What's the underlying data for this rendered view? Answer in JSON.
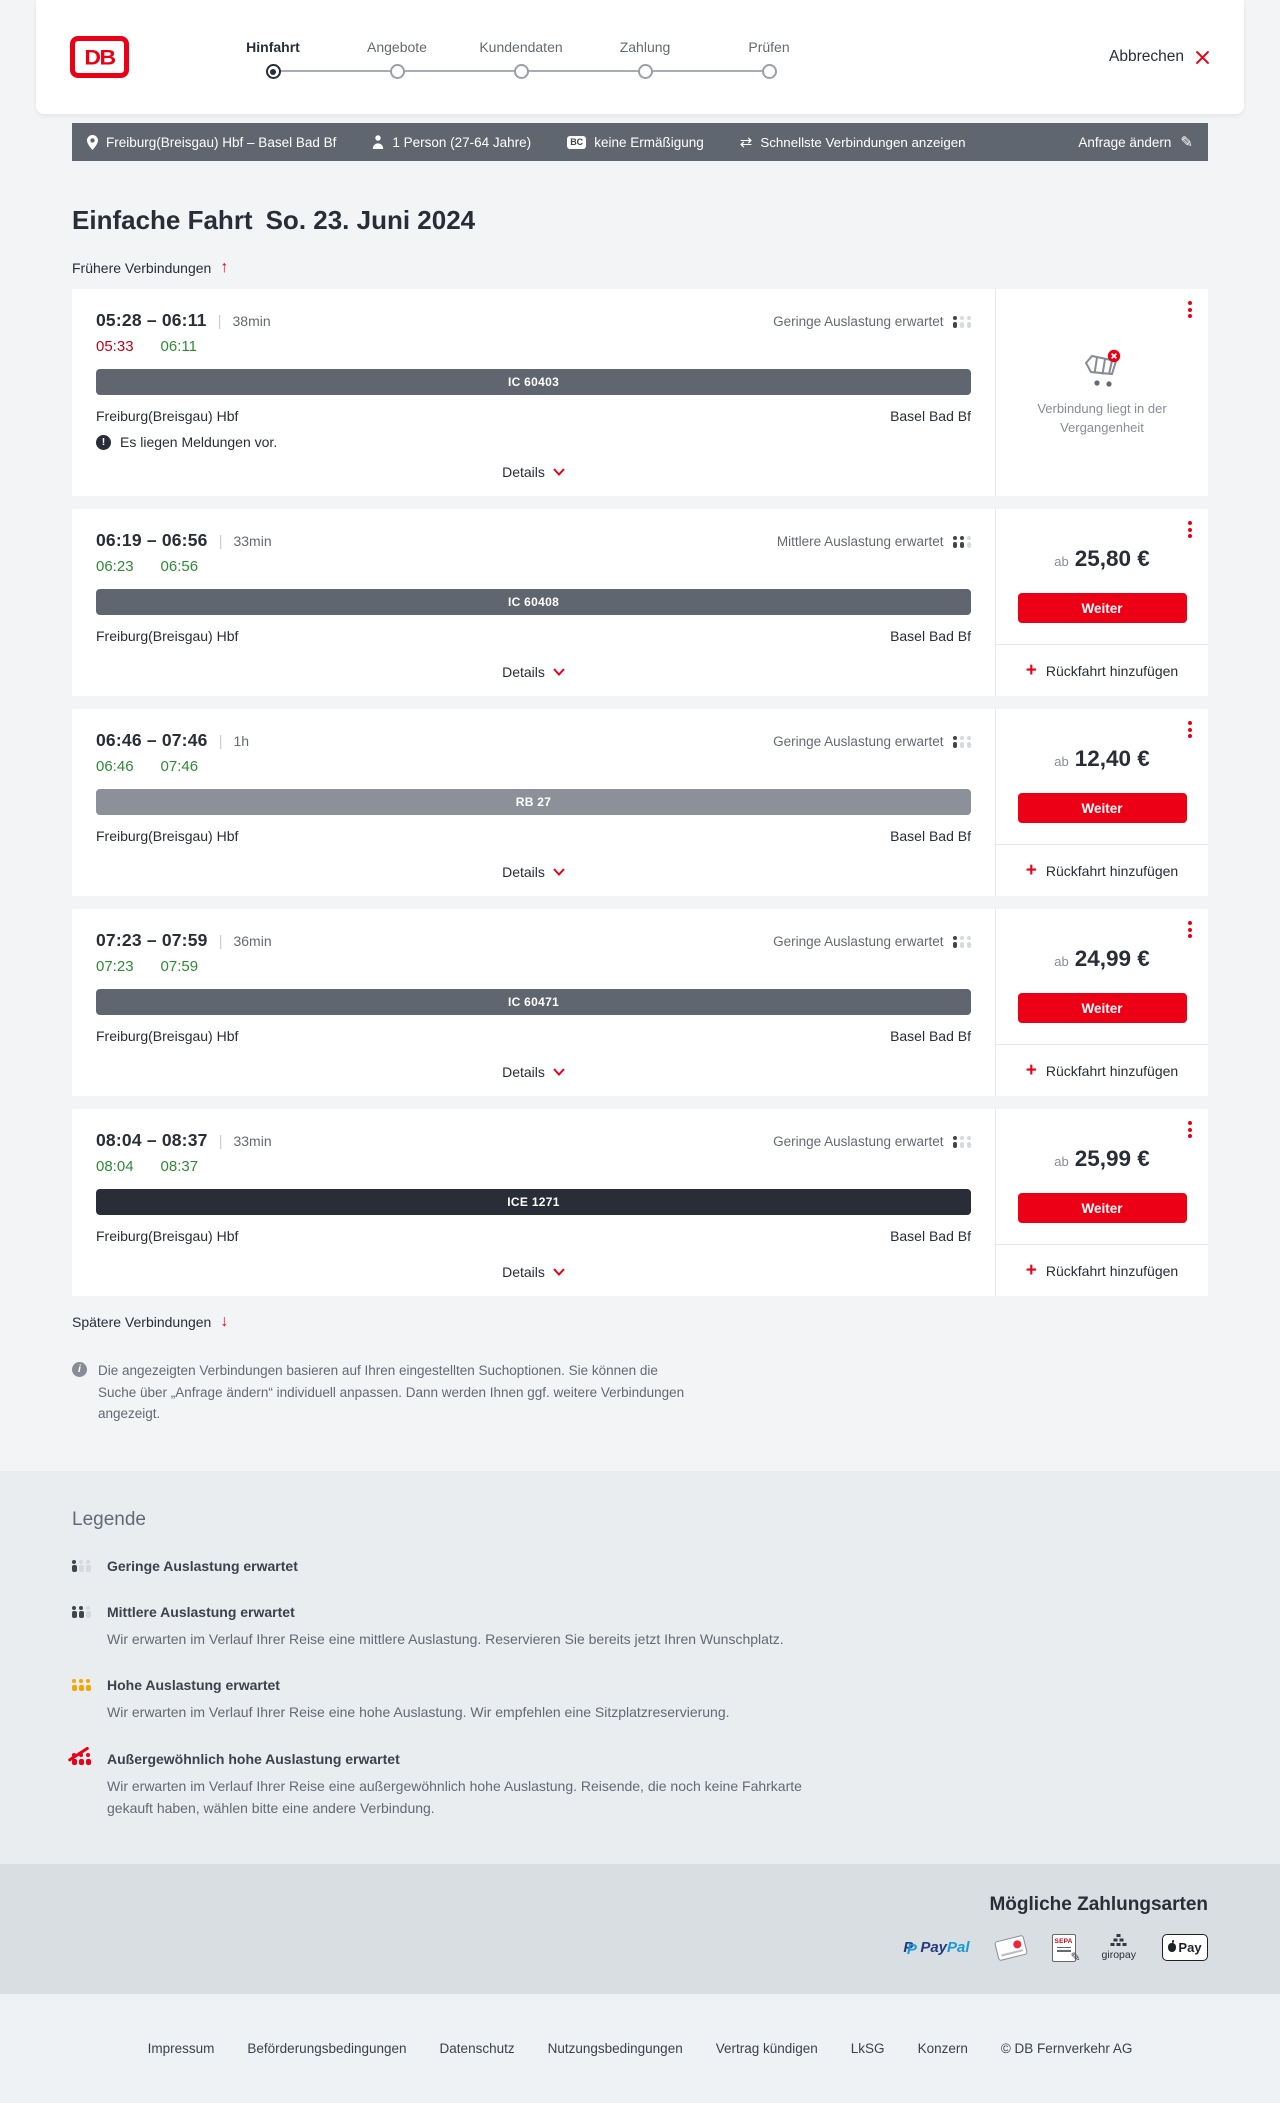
{
  "header": {
    "logo": "DB",
    "steps": [
      {
        "label": "Hinfahrt",
        "active": true
      },
      {
        "label": "Angebote",
        "active": false
      },
      {
        "label": "Kundendaten",
        "active": false
      },
      {
        "label": "Zahlung",
        "active": false
      },
      {
        "label": "Prüfen",
        "active": false
      }
    ],
    "cancel_label": "Abbrechen"
  },
  "query_bar": {
    "route": "Freiburg(Breisgau) Hbf – Basel Bad Bf",
    "travelers": "1 Person (27-64 Jahre)",
    "bahncard_badge": "BC",
    "bahncard": "keine Ermäßigung",
    "fastest": "Schnellste Verbindungen anzeigen",
    "edit": "Anfrage ändern"
  },
  "main": {
    "title": "Einfache Fahrt",
    "date": "So. 23. Juni 2024",
    "earlier": "Frühere Verbindungen",
    "later": "Spätere Verbindungen",
    "labels": {
      "details": "Details",
      "weiter": "Weiter",
      "price_prefix": "ab",
      "add_return": "Rückfahrt hinzufügen",
      "past": "Verbindung liegt in der Vergangenheit"
    },
    "connections": [
      {
        "time_range": "05:28 – 06:11",
        "duration": "38min",
        "departure_actual": "05:33",
        "departure_color": "#c50014",
        "arrival_actual": "06:11",
        "arrival_color": "#2f8a36",
        "occupancy": "Geringe Auslastung erwartet",
        "occupancy_level": 1,
        "train": "IC 60403",
        "train_color": "#60666f",
        "from": "Freiburg(Breisgau) Hbf",
        "to": "Basel Bad Bf",
        "notice": "Es liegen Meldungen vor.",
        "price": null,
        "past": true
      },
      {
        "time_range": "06:19 – 06:56",
        "duration": "33min",
        "departure_actual": "06:23",
        "departure_color": "#2f8a36",
        "arrival_actual": "06:56",
        "arrival_color": "#2f8a36",
        "occupancy": "Mittlere Auslastung erwartet",
        "occupancy_level": 2,
        "train": "IC 60408",
        "train_color": "#60666f",
        "from": "Freiburg(Breisgau) Hbf",
        "to": "Basel Bad Bf",
        "price": "25,80 €",
        "past": false
      },
      {
        "time_range": "06:46 – 07:46",
        "duration": "1h",
        "departure_actual": "06:46",
        "departure_color": "#2f8a36",
        "arrival_actual": "07:46",
        "arrival_color": "#2f8a36",
        "occupancy": "Geringe Auslastung erwartet",
        "occupancy_level": 1,
        "train": "RB 27",
        "train_color": "#8c9199",
        "from": "Freiburg(Breisgau) Hbf",
        "to": "Basel Bad Bf",
        "price": "12,40 €",
        "past": false
      },
      {
        "time_range": "07:23 – 07:59",
        "duration": "36min",
        "departure_actual": "07:23",
        "departure_color": "#2f8a36",
        "arrival_actual": "07:59",
        "arrival_color": "#2f8a36",
        "occupancy": "Geringe Auslastung erwartet",
        "occupancy_level": 1,
        "train": "IC 60471",
        "train_color": "#60666f",
        "from": "Freiburg(Breisgau) Hbf",
        "to": "Basel Bad Bf",
        "price": "24,99 €",
        "past": false
      },
      {
        "time_range": "08:04 – 08:37",
        "duration": "33min",
        "departure_actual": "08:04",
        "departure_color": "#2f8a36",
        "arrival_actual": "08:37",
        "arrival_color": "#2f8a36",
        "occupancy": "Geringe Auslastung erwartet",
        "occupancy_level": 1,
        "train": "ICE 1271",
        "train_color": "#282d37",
        "from": "Freiburg(Breisgau) Hbf",
        "to": "Basel Bad Bf",
        "price": "25,99 €",
        "past": false
      }
    ],
    "info_note": "Die angezeigten Verbindungen basieren auf Ihren eingestellten Suchoptionen. Sie können die Suche über „Anfrage ändern“ individuell anpassen. Dann werden Ihnen ggf. weitere Verbindungen angezeigt."
  },
  "legend": {
    "title": "Legende",
    "items": [
      {
        "label": "Geringe Auslastung erwartet",
        "desc": "",
        "level": 1
      },
      {
        "label": "Mittlere Auslastung erwartet",
        "desc": "Wir erwarten im Verlauf Ihrer Reise eine mittlere Auslastung. Reservieren Sie bereits jetzt Ihren Wunschplatz.",
        "level": 2
      },
      {
        "label": "Hohe Auslastung erwartet",
        "desc": "Wir erwarten im Verlauf Ihrer Reise eine hohe Auslastung. Wir empfehlen eine Sitzplatzreservierung.",
        "level": 3
      },
      {
        "label": "Außergewöhnlich hohe Auslastung erwartet",
        "desc": "Wir erwarten im Verlauf Ihrer Reise eine außergewöhnlich hohe Auslastung. Reisende, die noch keine Fahrkarte gekauft haben, wählen bitte eine andere Verbindung.",
        "level": 4
      }
    ]
  },
  "payment": {
    "title": "Mögliche Zahlungsarten",
    "paypal_a": "Pay",
    "paypal_b": "Pal",
    "sepa": "SEPA",
    "giropay": "giropay",
    "applepay": "Pay",
    "methods": [
      "PayPal",
      "Kreditkarte",
      "SEPA-Lastschrift",
      "giropay",
      "Apple Pay"
    ]
  },
  "footer": {
    "links": [
      "Impressum",
      "Beförderungsbedingungen",
      "Datenschutz",
      "Nutzungsbedingungen",
      "Vertrag kündigen",
      "LkSG",
      "Konzern"
    ],
    "copyright": "© DB Fernverkehr AG"
  },
  "icons": {
    "up_arrow": "↑",
    "down_arrow": "↓",
    "swap": "⇄",
    "pencil": "✎",
    "plus": "+",
    "warning": "!",
    "info": "i"
  },
  "colors": {
    "brand_red": "#ec0016",
    "dark": "#282d37",
    "gray_text": "#646973",
    "query_bar_bg": "#60666f",
    "page_bg": "#f2f4f6",
    "legend_bg": "#e9edf0",
    "payment_bg": "#d9dee3",
    "green_time": "#2f8a36",
    "red_time": "#c50014",
    "occupancy_active": "#41454e",
    "occupancy_inactive": "#d6dade",
    "occupancy_high": "#f7a600",
    "occupancy_exceptional": "#ec0016"
  }
}
